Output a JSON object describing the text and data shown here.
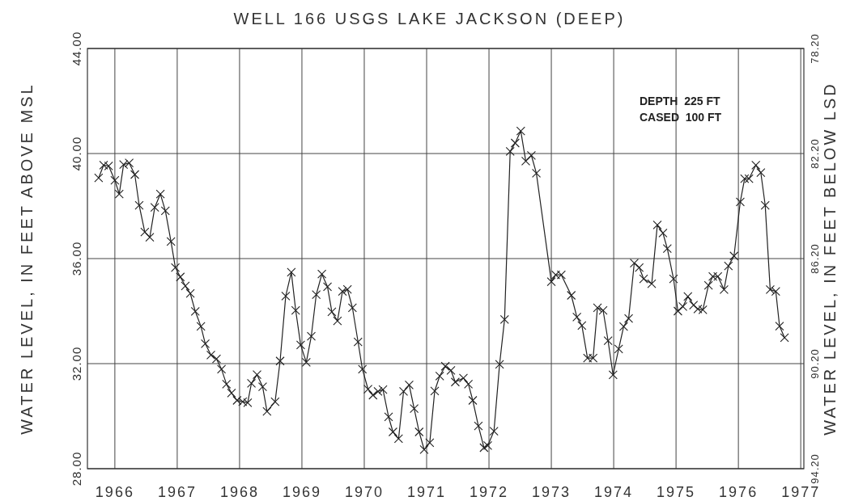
{
  "chart_data": {
    "type": "line",
    "title": "WELL 166  USGS  LAKE JACKSON  (DEEP)",
    "ylabel": "WATER LEVEL, IN FEET ABOVE MSL",
    "y2label": "WATER LEVEL, IN FEET BELOW LSD",
    "annotations": [
      "DEPTH  225 FT",
      "CASED  100 FT"
    ],
    "x": [
      1965.74,
      1965.82,
      1965.9,
      1966.0,
      1966.07,
      1966.14,
      1966.23,
      1966.32,
      1966.39,
      1966.48,
      1966.56,
      1966.64,
      1966.73,
      1966.81,
      1966.9,
      1966.97,
      1967.05,
      1967.13,
      1967.21,
      1967.29,
      1967.38,
      1967.45,
      1967.54,
      1967.63,
      1967.71,
      1967.79,
      1967.87,
      1967.96,
      1968.05,
      1968.13,
      1968.19,
      1968.28,
      1968.37,
      1968.44,
      1968.57,
      1968.65,
      1968.74,
      1968.83,
      1968.9,
      1968.98,
      1969.07,
      1969.15,
      1969.23,
      1969.32,
      1969.41,
      1969.48,
      1969.57,
      1969.65,
      1969.73,
      1969.81,
      1969.9,
      1969.97,
      1970.06,
      1970.14,
      1970.22,
      1970.3,
      1970.39,
      1970.46,
      1970.55,
      1970.63,
      1970.72,
      1970.8,
      1970.88,
      1970.96,
      1971.05,
      1971.13,
      1971.21,
      1971.3,
      1971.39,
      1971.46,
      1971.59,
      1971.67,
      1971.74,
      1971.83,
      1971.92,
      1971.98,
      1972.08,
      1972.17,
      1972.25,
      1972.34,
      1972.42,
      1972.51,
      1972.59,
      1972.68,
      1972.76,
      1973.0,
      1973.07,
      1973.16,
      1973.32,
      1973.41,
      1973.49,
      1973.58,
      1973.67,
      1973.74,
      1973.83,
      1973.91,
      1973.99,
      1974.08,
      1974.16,
      1974.24,
      1974.33,
      1974.41,
      1974.48,
      1974.61,
      1974.7,
      1974.79,
      1974.86,
      1974.96,
      1975.03,
      1975.11,
      1975.19,
      1975.28,
      1975.35,
      1975.43,
      1975.52,
      1975.59,
      1975.67,
      1975.77,
      1975.84,
      1975.93,
      1976.03,
      1976.1,
      1976.17,
      1976.28,
      1976.36,
      1976.43,
      1976.51,
      1976.6,
      1976.66,
      1976.74
    ],
    "series": [
      {
        "color": "#222222",
        "values": [
          39.07,
          39.56,
          39.53,
          38.98,
          38.46,
          39.58,
          39.64,
          39.2,
          38.03,
          37.01,
          36.81,
          37.95,
          38.46,
          37.82,
          36.65,
          35.66,
          35.3,
          34.96,
          34.67,
          33.99,
          33.42,
          32.76,
          32.33,
          32.18,
          31.79,
          31.22,
          30.88,
          30.6,
          30.55,
          30.51,
          31.25,
          31.58,
          31.12,
          30.18,
          30.55,
          32.1,
          34.57,
          35.48,
          34.03,
          32.71,
          32.05,
          33.04,
          34.63,
          35.41,
          34.93,
          33.97,
          33.63,
          34.75,
          34.83,
          34.13,
          32.83,
          31.79,
          31.03,
          30.8,
          30.94,
          31.01,
          29.97,
          29.4,
          29.14,
          30.94,
          31.19,
          30.29,
          29.4,
          28.73,
          28.99,
          30.96,
          31.53,
          31.9,
          31.74,
          31.3,
          31.45,
          31.22,
          30.6,
          29.63,
          28.8,
          28.88,
          29.43,
          31.97,
          33.68,
          40.08,
          40.4,
          40.86,
          39.71,
          39.93,
          39.25,
          35.12,
          35.38,
          35.38,
          34.6,
          33.77,
          33.45,
          32.21,
          32.21,
          34.13,
          34.03,
          32.87,
          31.57,
          32.56,
          33.41,
          33.72,
          35.83,
          35.66,
          35.23,
          35.04,
          37.28,
          36.97,
          36.38,
          35.23,
          34.0,
          34.17,
          34.56,
          34.23,
          34.08,
          34.05,
          34.98,
          35.32,
          35.32,
          34.82,
          35.72,
          36.1,
          38.16,
          39.04,
          39.04,
          39.56,
          39.27,
          38.03,
          34.82,
          34.75,
          33.43,
          32.99
        ]
      }
    ],
    "xlim": [
      1965.56,
      1977.05
    ],
    "xticks": [
      1966,
      1967,
      1968,
      1969,
      1970,
      1971,
      1972,
      1973,
      1974,
      1975,
      1976,
      1977
    ],
    "ylim": [
      28,
      44
    ],
    "yticks": [
      {
        "value": 28,
        "label": "28.00"
      },
      {
        "value": 32,
        "label": "32.00"
      },
      {
        "value": 36,
        "label": "36.00"
      },
      {
        "value": 40,
        "label": "40.00"
      },
      {
        "value": 44,
        "label": "44.00"
      }
    ],
    "y2lim": [
      94.2,
      78.2
    ],
    "y2ticks": [
      {
        "value": 94.2,
        "label": "94.20"
      },
      {
        "value": 90.2,
        "label": "90.20"
      },
      {
        "value": 86.2,
        "label": "86.20"
      },
      {
        "value": 82.2,
        "label": "82.20"
      },
      {
        "value": 78.2,
        "label": "78.20"
      }
    ],
    "grid": true,
    "marker": "cross",
    "line_style": "solid"
  }
}
